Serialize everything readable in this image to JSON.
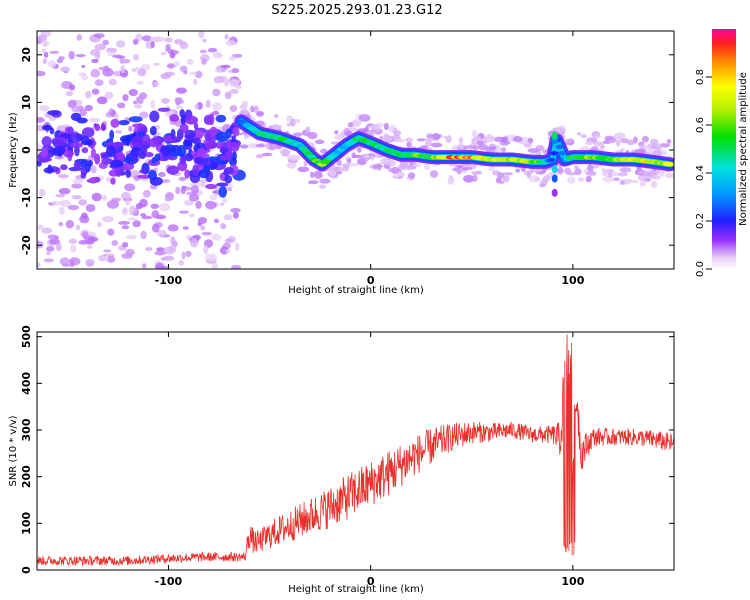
{
  "title": "S225.2025.293.01.23.G12",
  "chart_data": [
    {
      "type": "heatmap",
      "name": "spectrogram",
      "xlabel": "Height of straight line (km)",
      "ylabel": "Frequency (Hz)",
      "xlim": [
        -165,
        150
      ],
      "ylim": [
        -25,
        25
      ],
      "xticks": [
        -100,
        0,
        100
      ],
      "yticks": [
        -20,
        -10,
        0,
        10,
        20
      ],
      "colorbar": {
        "label": "Normalized spectral amplitude",
        "range": [
          0,
          1
        ],
        "ticks": [
          "0.0",
          "0.2",
          "0.4",
          "0.6",
          "0.8"
        ]
      },
      "ridge": {
        "x": [
          -64,
          -55,
          -45,
          -35,
          -28,
          -24,
          -18,
          -12,
          -6,
          0,
          8,
          15,
          22,
          30,
          40,
          50,
          60,
          70,
          80,
          86,
          90,
          92,
          96,
          100,
          110,
          120,
          130,
          140,
          148
        ],
        "y": [
          6,
          3.5,
          2.5,
          1,
          -2,
          -3,
          -1,
          1,
          2.5,
          1.5,
          0,
          -1,
          -1,
          -1.5,
          -1.5,
          -1.5,
          -2,
          -2,
          -2.5,
          -2.5,
          -2,
          2,
          -2,
          -1.5,
          -1.5,
          -2,
          -2,
          -2.5,
          -3
        ],
        "amplitude": [
          0.3,
          0.5,
          0.55,
          0.45,
          0.6,
          0.65,
          0.4,
          0.45,
          0.6,
          0.55,
          0.5,
          0.55,
          0.6,
          0.65,
          0.95,
          0.9,
          0.85,
          0.75,
          0.7,
          0.5,
          0.2,
          0.3,
          0.35,
          0.6,
          0.7,
          0.7,
          0.9,
          0.75,
          0.8
        ]
      },
      "noise_region": {
        "x": [
          -165,
          -65
        ],
        "center_y": 0,
        "spread_y": 25
      }
    },
    {
      "type": "line",
      "name": "snr",
      "xlabel": "Height of straight line (km)",
      "ylabel": "SNR (10 * v/v)",
      "xlim": [
        -165,
        150
      ],
      "ylim": [
        0,
        510
      ],
      "xticks": [
        -100,
        0,
        100
      ],
      "yticks": [
        0,
        100,
        200,
        300,
        400,
        500
      ],
      "color": "#e8302a",
      "envelope": {
        "x": [
          -165,
          -120,
          -100,
          -80,
          -62,
          -60,
          -58,
          -55,
          -50,
          -40,
          -30,
          -20,
          -10,
          0,
          10,
          20,
          30,
          40,
          50,
          60,
          70,
          80,
          90,
          94,
          96,
          98,
          100,
          102,
          104,
          110,
          120,
          130,
          140,
          150
        ],
        "y": [
          20,
          20,
          25,
          28,
          28,
          80,
          60,
          60,
          75,
          95,
          115,
          135,
          160,
          185,
          210,
          240,
          265,
          285,
          295,
          295,
          300,
          290,
          290,
          280,
          420,
          410,
          220,
          380,
          250,
          285,
          285,
          285,
          280,
          270
        ],
        "spread": [
          10,
          10,
          10,
          10,
          10,
          35,
          25,
          25,
          30,
          35,
          40,
          45,
          50,
          50,
          50,
          45,
          40,
          30,
          25,
          20,
          18,
          18,
          20,
          40,
          90,
          90,
          90,
          60,
          40,
          20,
          18,
          18,
          20,
          22
        ]
      }
    }
  ]
}
